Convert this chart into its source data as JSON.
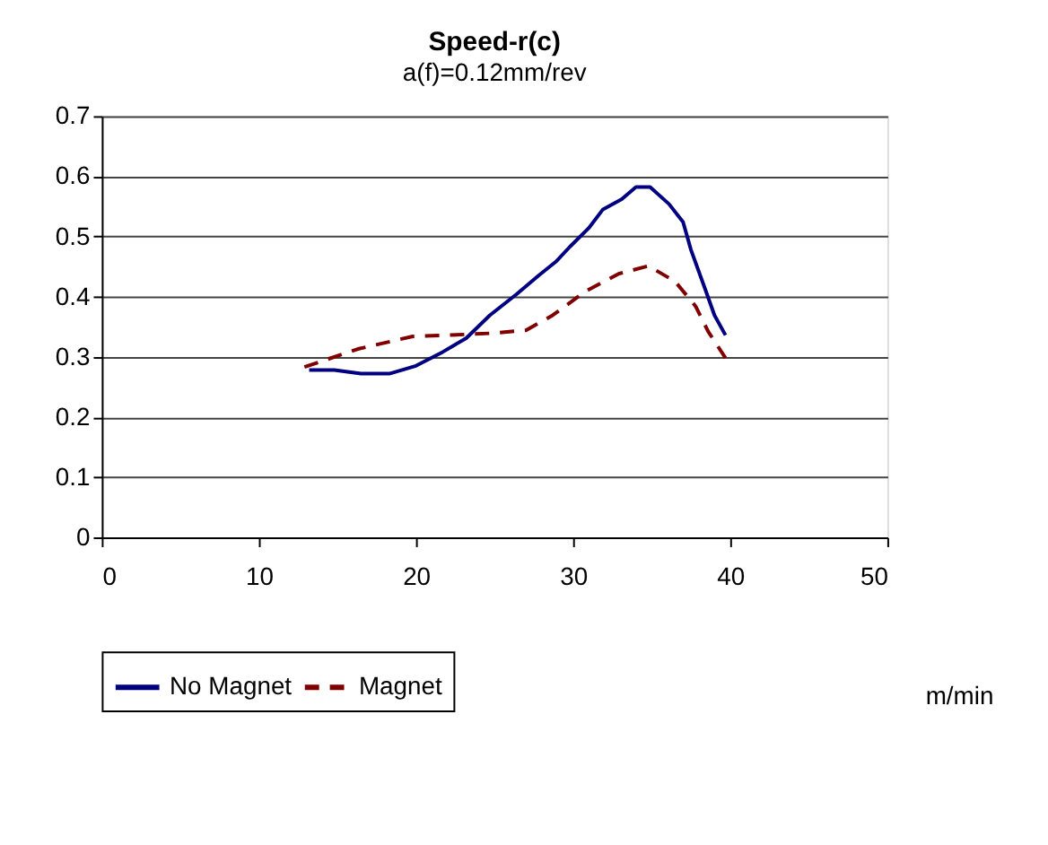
{
  "chart_data": {
    "type": "line",
    "title": "Speed-r(c)",
    "subtitle": "a(f)=0.12mm/rev",
    "xlabel": "m/min",
    "xlim": [
      0,
      50
    ],
    "xticks": [
      0,
      10,
      20,
      30,
      40,
      50
    ],
    "ylim": [
      0,
      0.7
    ],
    "yticks": [
      0,
      0.1,
      0.2,
      0.3,
      0.4,
      0.5,
      0.6,
      0.7
    ],
    "grid": "y",
    "legend": "bottom",
    "marker": "none",
    "series": [
      {
        "name": "No Magnet",
        "color": "#000080",
        "line_style": "solid",
        "x": [
          13.2,
          14.8,
          16.5,
          18.3,
          20,
          21.7,
          23.2,
          24.7,
          26.4,
          27.8,
          28.9,
          29.8,
          31,
          31.9,
          33.1,
          34,
          34.9,
          36.1,
          37,
          37.5,
          38.4,
          39,
          39.7
        ],
        "values": [
          0.278,
          0.278,
          0.272,
          0.272,
          0.285,
          0.308,
          0.331,
          0.369,
          0.404,
          0.435,
          0.458,
          0.483,
          0.514,
          0.545,
          0.562,
          0.582,
          0.582,
          0.554,
          0.524,
          0.478,
          0.413,
          0.369,
          0.336
        ]
      },
      {
        "name": "Magnet",
        "color": "#800000",
        "line_style": "dashed",
        "x": [
          12.9,
          16.3,
          19.8,
          22.1,
          24.7,
          27,
          28.7,
          30.8,
          32.9,
          34.8,
          36.5,
          37.8,
          38.6,
          39.7
        ],
        "values": [
          0.283,
          0.313,
          0.334,
          0.336,
          0.339,
          0.344,
          0.369,
          0.409,
          0.438,
          0.451,
          0.425,
          0.384,
          0.342,
          0.298
        ]
      }
    ]
  }
}
